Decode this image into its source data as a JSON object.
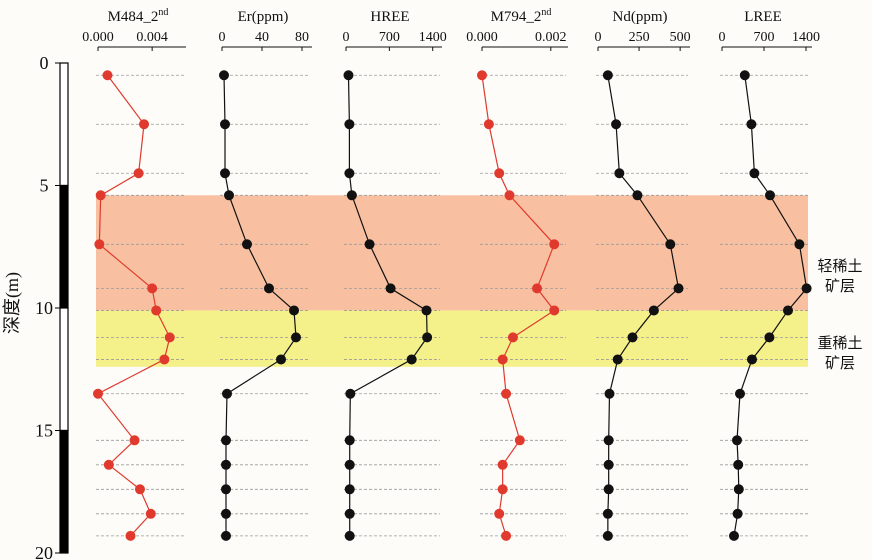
{
  "chart_data": {
    "type": "multi-panel depth profile",
    "depth_axis": {
      "label": "深度(m)",
      "ticks": [
        0,
        5,
        10,
        15,
        20
      ],
      "ylim": [
        0,
        20
      ],
      "scale_bar": [
        {
          "from": 0,
          "to": 5,
          "color": "#ffffff"
        },
        {
          "from": 5,
          "to": 10,
          "color": "#000000"
        },
        {
          "from": 10,
          "to": 15,
          "color": "#ffffff"
        },
        {
          "from": 15,
          "to": 20,
          "color": "#000000"
        }
      ]
    },
    "depths": [
      0.5,
      2.5,
      4.5,
      5.4,
      7.4,
      9.2,
      10.1,
      11.2,
      12.1,
      13.5,
      15.4,
      16.4,
      17.4,
      18.4,
      19.3
    ],
    "zones": [
      {
        "name_line1": "轻稀土",
        "name_line2": "矿层",
        "from": 5.4,
        "to": 10.1,
        "color": "#f8c0a0"
      },
      {
        "name_line1": "重稀土",
        "name_line2": "矿层",
        "from": 10.1,
        "to": 12.4,
        "color": "#f4f08a"
      }
    ],
    "panels": [
      {
        "title": "M484_2",
        "sup": "nd",
        "xlim": [
          0,
          0.0065
        ],
        "tick_values": [
          0,
          0.004
        ],
        "tick_labels": [
          "0.000",
          "0.004"
        ],
        "color": "#e03a2e",
        "values": [
          0.0007,
          0.0034,
          0.003,
          0.0002,
          0.0001,
          0.004,
          0.0043,
          0.0053,
          0.0049,
          0.0,
          0.0027,
          0.0008,
          0.0031,
          0.0039,
          0.0024
        ]
      },
      {
        "title": "Er(ppm)",
        "sup": "",
        "xlim": [
          0,
          90
        ],
        "tick_values": [
          0,
          40,
          80
        ],
        "tick_labels": [
          "0",
          "40",
          "80"
        ],
        "color": "#111111",
        "values": [
          2,
          3,
          3,
          7,
          25,
          47,
          72,
          74,
          59,
          5,
          4,
          4,
          4,
          4,
          4
        ]
      },
      {
        "title": "HREE",
        "sup": "",
        "xlim": [
          0,
          1550
        ],
        "tick_values": [
          0,
          700,
          1400
        ],
        "tick_labels": [
          "0",
          "700",
          "1400"
        ],
        "color": "#111111",
        "values": [
          40,
          55,
          55,
          95,
          380,
          720,
          1300,
          1310,
          1060,
          70,
          60,
          60,
          60,
          60,
          60
        ]
      },
      {
        "title": "M794_2",
        "sup": "nd",
        "xlim": [
          0,
          0.0025
        ],
        "tick_values": [
          0,
          0.002
        ],
        "tick_labels": [
          "0.000",
          "0.002"
        ],
        "color": "#e03a2e",
        "values": [
          0.0,
          0.0002,
          0.0005,
          0.0008,
          0.0021,
          0.0016,
          0.0021,
          0.0009,
          0.0006,
          0.0007,
          0.0011,
          0.0006,
          0.0006,
          0.0005,
          0.0007
        ]
      },
      {
        "title": "Nd(ppm)",
        "sup": "",
        "xlim": [
          0,
          560
        ],
        "tick_values": [
          0,
          250,
          500
        ],
        "tick_labels": [
          "0",
          "250",
          "500"
        ],
        "color": "#111111",
        "values": [
          60,
          110,
          130,
          240,
          440,
          490,
          340,
          210,
          120,
          70,
          65,
          65,
          65,
          60,
          60
        ]
      },
      {
        "title": "LREE",
        "sup": "",
        "xlim": [
          0,
          1500
        ],
        "tick_values": [
          0,
          700,
          1400
        ],
        "tick_labels": [
          "0",
          "700",
          "1400"
        ],
        "color": "#111111",
        "values": [
          380,
          490,
          540,
          800,
          1290,
          1410,
          1100,
          790,
          500,
          300,
          250,
          270,
          280,
          260,
          200
        ]
      }
    ]
  }
}
